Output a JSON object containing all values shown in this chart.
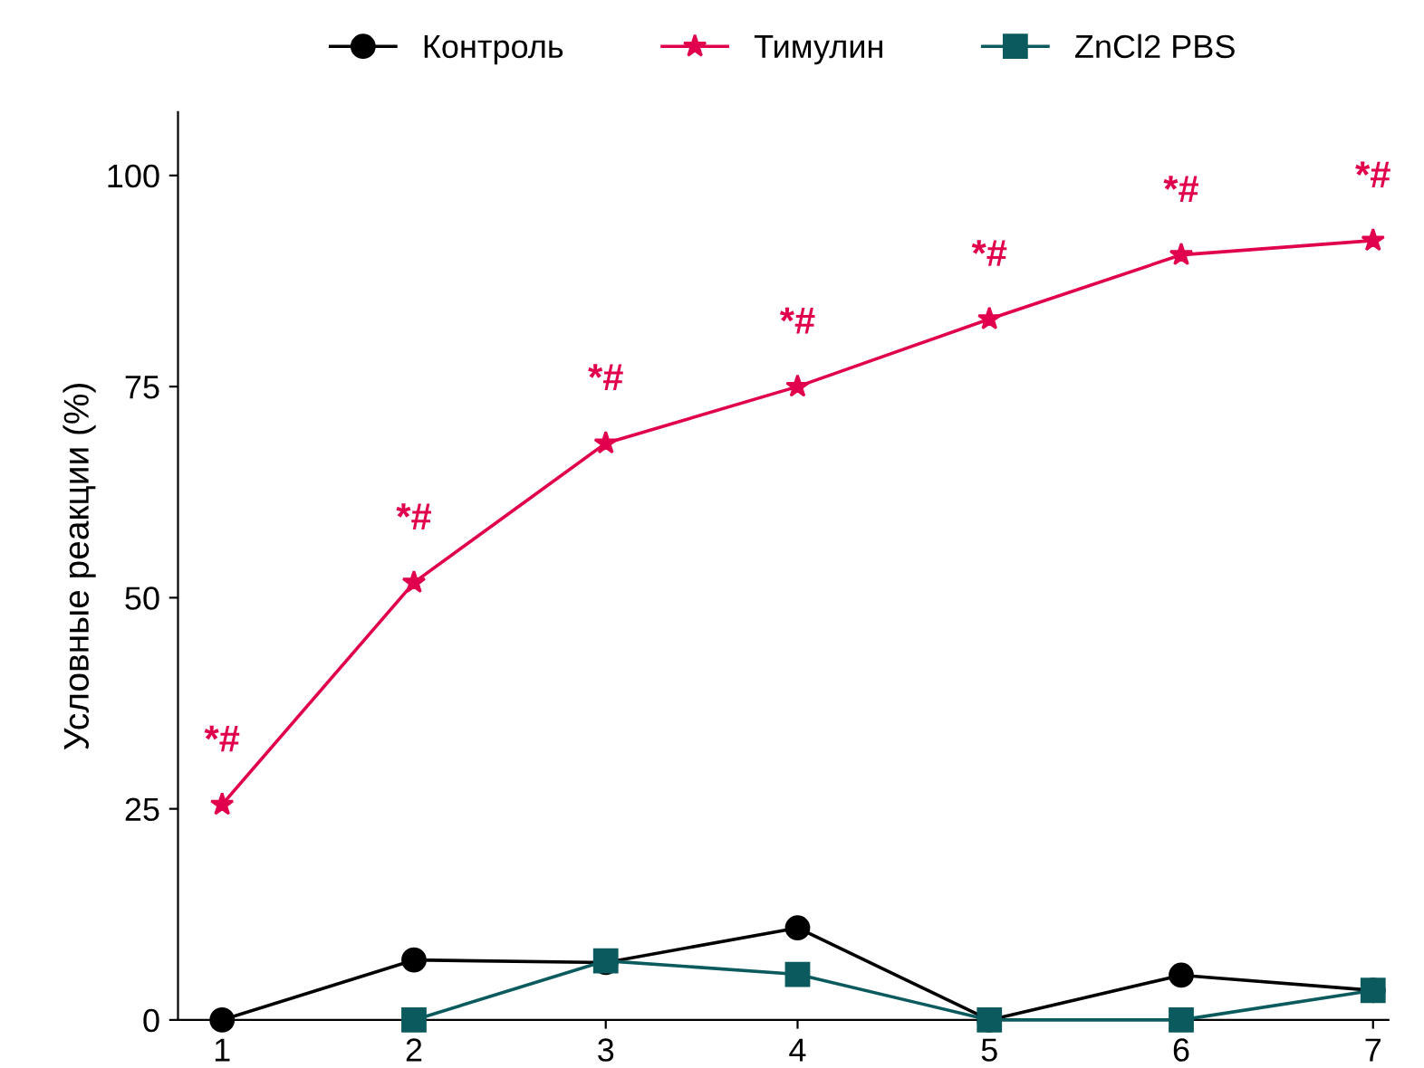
{
  "chart_data": {
    "type": "line",
    "ylabel": "Условные реакции (%)",
    "x": [
      1,
      2,
      3,
      4,
      5,
      6,
      7
    ],
    "series": [
      {
        "name": "Контроль",
        "color": "#000000",
        "marker": "circle",
        "values": [
          0,
          7.1,
          6.8,
          10.9,
          0,
          5.3,
          3.5
        ]
      },
      {
        "name": "Тимулин",
        "color": "#e0004d",
        "marker": "star",
        "values": [
          25.5,
          51.8,
          68.3,
          75,
          83,
          90.6,
          92.3
        ]
      },
      {
        "name": "ZnCl2 PBS",
        "color": "#0b5a5e",
        "marker": "square",
        "values": [
          null,
          0,
          7,
          5.4,
          0,
          0,
          3.5
        ]
      }
    ],
    "annotations": [
      {
        "text": "*#",
        "x": 1,
        "y": 25.5
      },
      {
        "text": "*#",
        "x": 2,
        "y": 51.8
      },
      {
        "text": "*#",
        "x": 3,
        "y": 68.3
      },
      {
        "text": "*#",
        "x": 4,
        "y": 75
      },
      {
        "text": "*#",
        "x": 5,
        "y": 83
      },
      {
        "text": "*#",
        "x": 6,
        "y": 90.6
      },
      {
        "text": "*#",
        "x": 7,
        "y": 92.3
      }
    ],
    "xlim": [
      0.77,
      7.08
    ],
    "xticks": [
      1,
      2,
      3,
      4,
      5,
      6,
      7
    ],
    "ylim": [
      0,
      107.5
    ],
    "yticks": [
      0,
      25,
      50,
      75,
      100
    ],
    "grid": false,
    "legend": "top",
    "line_style": "solid"
  }
}
